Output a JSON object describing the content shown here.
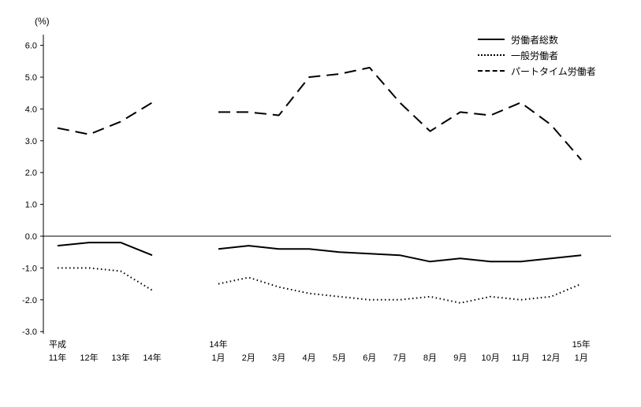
{
  "chart_data": {
    "type": "line",
    "unit_label": "(%)",
    "ylim": [
      -3.0,
      6.0
    ],
    "yticks": [
      "6.0",
      "5.0",
      "4.0",
      "3.0",
      "2.0",
      "1.0",
      "0.0",
      "-1.0",
      "-2.0",
      "-3.0"
    ],
    "legend": [
      {
        "name": "労働者総数",
        "style": "solid"
      },
      {
        "name": "一般労働者",
        "style": "dotted"
      },
      {
        "name": "パートタイム労働者",
        "style": "dashed"
      }
    ],
    "groups": [
      {
        "categories": [
          {
            "sub": "平成",
            "label": "11年"
          },
          {
            "label": "12年"
          },
          {
            "label": "13年"
          },
          {
            "label": "14年"
          }
        ],
        "series": [
          [
            -0.3,
            -0.2,
            -0.2,
            -0.6
          ],
          [
            -1.0,
            -1.0,
            -1.1,
            -1.7
          ],
          [
            3.4,
            3.2,
            3.6,
            4.2
          ]
        ]
      },
      {
        "categories": [
          {
            "sub": "14年",
            "label": "1月"
          },
          {
            "label": "2月"
          },
          {
            "label": "3月"
          },
          {
            "label": "4月"
          },
          {
            "label": "5月"
          },
          {
            "label": "6月"
          },
          {
            "label": "7月"
          },
          {
            "label": "8月"
          },
          {
            "label": "9月"
          },
          {
            "label": "10月"
          },
          {
            "label": "11月"
          },
          {
            "label": "12月"
          },
          {
            "sub": "15年",
            "label": "1月"
          }
        ],
        "series": [
          [
            -0.4,
            -0.3,
            -0.4,
            -0.4,
            -0.5,
            -0.55,
            -0.6,
            -0.8,
            -0.7,
            -0.8,
            -0.8,
            -0.7,
            -0.6
          ],
          [
            -1.5,
            -1.3,
            -1.6,
            -1.8,
            -1.9,
            -2.0,
            -2.0,
            -1.9,
            -2.1,
            -1.9,
            -2.0,
            -1.9,
            -1.5
          ],
          [
            3.9,
            3.9,
            3.8,
            5.0,
            5.1,
            5.3,
            4.2,
            3.3,
            3.9,
            3.8,
            4.2,
            3.5,
            2.4
          ]
        ]
      }
    ],
    "line_color": "#000000"
  }
}
